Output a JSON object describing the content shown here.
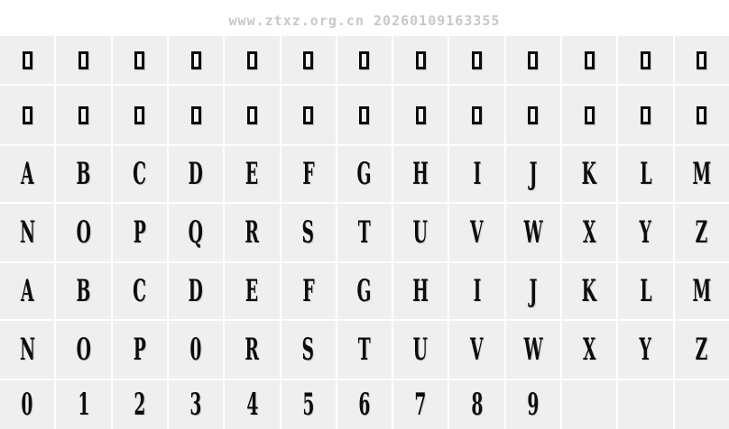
{
  "watermark": {
    "text": "www.ztxz.org.cn 20260109163355",
    "color": "#c8c8c8"
  },
  "colors": {
    "page_background": "#ffffff",
    "cell_background": "#efefef",
    "grid_line": "#ffffff",
    "glyph": "#0c0c0c"
  },
  "grid": {
    "columns": 13,
    "rows": [
      {
        "name": "missing-glyphs-row-1",
        "type": "missing",
        "count": 13
      },
      {
        "name": "missing-glyphs-row-2",
        "type": "missing",
        "count": 13
      },
      {
        "name": "uppercase-a-m",
        "type": "glyph",
        "cells": [
          "A",
          "B",
          "C",
          "D",
          "E",
          "F",
          "G",
          "H",
          "I",
          "J",
          "K",
          "L",
          "M"
        ]
      },
      {
        "name": "uppercase-n-z",
        "type": "glyph",
        "cells": [
          "N",
          "O",
          "P",
          "Q",
          "R",
          "S",
          "T",
          "U",
          "V",
          "W",
          "X",
          "Y",
          "Z"
        ]
      },
      {
        "name": "lowercase-a-m",
        "type": "glyph",
        "cells": [
          "A",
          "B",
          "C",
          "D",
          "E",
          "F",
          "G",
          "H",
          "I",
          "J",
          "K",
          "L",
          "M"
        ]
      },
      {
        "name": "lowercase-n-z",
        "type": "glyph",
        "cells": [
          "N",
          "O",
          "P",
          "0",
          "R",
          "S",
          "T",
          "U",
          "V",
          "W",
          "X",
          "Y",
          "Z"
        ]
      },
      {
        "name": "digits",
        "type": "glyph",
        "cells": [
          "0",
          "1",
          "2",
          "3",
          "4",
          "5",
          "6",
          "7",
          "8",
          "9",
          "",
          "",
          ""
        ]
      }
    ]
  }
}
